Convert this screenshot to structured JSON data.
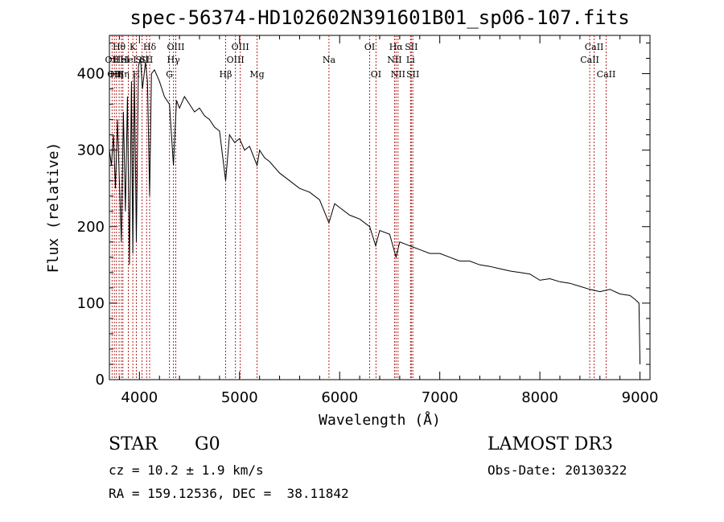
{
  "chart_data": {
    "type": "line",
    "title": "spec-56374-HD102602N391601B01_sp06-107.fits",
    "xlabel": "Wavelength (Å)",
    "ylabel": "Flux (relative)",
    "xlim": [
      3700,
      9100
    ],
    "ylim": [
      0,
      450
    ],
    "xticks": [
      4000,
      5000,
      6000,
      7000,
      8000,
      9000
    ],
    "yticks": [
      0,
      100,
      200,
      300,
      400
    ],
    "line_color": "#000000",
    "marker_color": "#b22222",
    "series": [
      {
        "name": "spectrum",
        "x": [
          3700,
          3720,
          3740,
          3760,
          3780,
          3800,
          3820,
          3840,
          3860,
          3880,
          3900,
          3920,
          3934,
          3950,
          3969,
          3990,
          4010,
          4030,
          4060,
          4080,
          4102,
          4120,
          4150,
          4200,
          4250,
          4300,
          4340,
          4370,
          4400,
          4450,
          4500,
          4550,
          4600,
          4650,
          4700,
          4750,
          4800,
          4861,
          4900,
          4950,
          5000,
          5050,
          5100,
          5175,
          5200,
          5250,
          5300,
          5400,
          5500,
          5600,
          5700,
          5800,
          5893,
          5950,
          6000,
          6100,
          6200,
          6300,
          6360,
          6400,
          6500,
          6563,
          6600,
          6700,
          6800,
          6900,
          7000,
          7100,
          7200,
          7300,
          7400,
          7500,
          7600,
          7700,
          7800,
          7900,
          8000,
          8100,
          8200,
          8300,
          8400,
          8500,
          8600,
          8700,
          8800,
          8900,
          8950,
          8990,
          9000
        ],
        "values": [
          300,
          280,
          320,
          250,
          340,
          260,
          180,
          350,
          220,
          370,
          150,
          390,
          165,
          400,
          180,
          410,
          420,
          380,
          415,
          390,
          240,
          400,
          405,
          390,
          370,
          360,
          280,
          365,
          355,
          370,
          360,
          350,
          355,
          345,
          340,
          330,
          325,
          260,
          320,
          310,
          315,
          300,
          305,
          280,
          300,
          290,
          285,
          270,
          260,
          250,
          245,
          235,
          205,
          230,
          225,
          215,
          210,
          200,
          175,
          195,
          190,
          160,
          180,
          175,
          170,
          165,
          165,
          160,
          155,
          155,
          150,
          148,
          145,
          142,
          140,
          138,
          130,
          132,
          128,
          126,
          122,
          118,
          115,
          118,
          112,
          110,
          105,
          100,
          20
        ]
      }
    ],
    "lines": [
      {
        "wl": 3727,
        "label": "OII",
        "row": 2
      },
      {
        "wl": 3750,
        "label": "OII",
        "row": 3
      },
      {
        "wl": 3770,
        "label": "Hη",
        "row": 3
      },
      {
        "wl": 3797,
        "label": "Hθ",
        "row": 1
      },
      {
        "wl": 3820,
        "label": "HeI",
        "row": 2
      },
      {
        "wl": 3835,
        "label": "Hη",
        "row": 3
      },
      {
        "wl": 3889,
        "label": "HeI",
        "row": 2
      },
      {
        "wl": 3934,
        "label": "K",
        "row": 1
      },
      {
        "wl": 3969,
        "label": "H",
        "row": 3
      },
      {
        "wl": 4026,
        "label": "SII",
        "row": 2
      },
      {
        "wl": 4072,
        "label": "SII",
        "row": 2
      },
      {
        "wl": 4102,
        "label": "Hδ",
        "row": 1
      },
      {
        "wl": 4300,
        "label": "G",
        "row": 3
      },
      {
        "wl": 4340,
        "label": "Hγ",
        "row": 2
      },
      {
        "wl": 4363,
        "label": "OIII",
        "row": 1
      },
      {
        "wl": 4861,
        "label": "Hβ",
        "row": 3
      },
      {
        "wl": 4959,
        "label": "OIII",
        "row": 2
      },
      {
        "wl": 5007,
        "label": "OIII",
        "row": 1
      },
      {
        "wl": 5175,
        "label": "Mg",
        "row": 3
      },
      {
        "wl": 5893,
        "label": "Na",
        "row": 2
      },
      {
        "wl": 6300,
        "label": "OI",
        "row": 1
      },
      {
        "wl": 6363,
        "label": "OI",
        "row": 3
      },
      {
        "wl": 6548,
        "label": "NII",
        "row": 2
      },
      {
        "wl": 6563,
        "label": "Hα",
        "row": 1
      },
      {
        "wl": 6583,
        "label": "NII",
        "row": 3
      },
      {
        "wl": 6708,
        "label": "Li",
        "row": 2
      },
      {
        "wl": 6716,
        "label": "SII",
        "row": 1
      },
      {
        "wl": 6731,
        "label": "SII",
        "row": 3
      },
      {
        "wl": 8498,
        "label": "CaII",
        "row": 2
      },
      {
        "wl": 8542,
        "label": "CaII",
        "row": 1
      },
      {
        "wl": 8662,
        "label": "CaII",
        "row": 3
      }
    ]
  },
  "info": {
    "object_class": "STAR",
    "subclass": "G0",
    "survey": "LAMOST DR3",
    "redshift": "cz = 10.2 ± 1.9 km/s",
    "obs_date": "Obs-Date: 20130322",
    "coords": "RA = 159.12536, DEC =  38.11842"
  }
}
